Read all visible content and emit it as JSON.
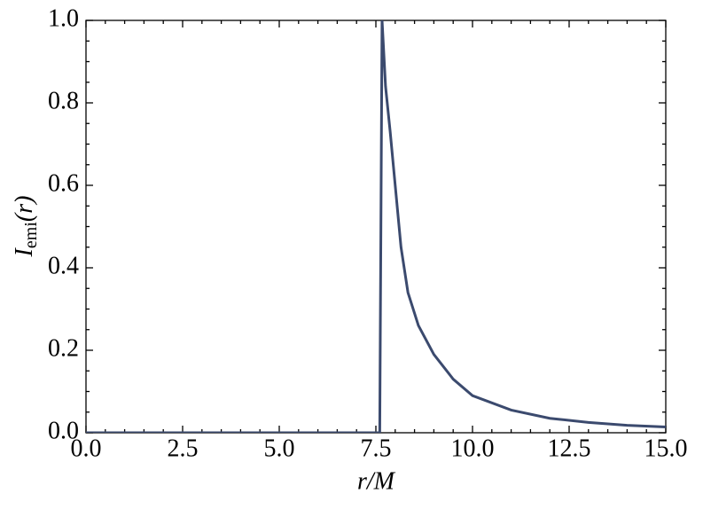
{
  "chart_data": {
    "type": "line",
    "xlabel": "r/M",
    "ylabel": {
      "symbol": "I",
      "subscript": "emi",
      "argument": "(r)"
    },
    "x": [
      0,
      7.6,
      7.66,
      7.75,
      7.87,
      8.0,
      8.15,
      8.33,
      8.6,
      9.0,
      9.5,
      10.0,
      11.0,
      12.0,
      13.0,
      14.0,
      15.0
    ],
    "series": [
      {
        "name": "I_emi",
        "color": "#3b4a6e",
        "values": [
          0,
          0,
          1.0,
          0.84,
          0.73,
          0.6,
          0.45,
          0.34,
          0.26,
          0.19,
          0.13,
          0.09,
          0.055,
          0.035,
          0.025,
          0.018,
          0.014
        ]
      }
    ],
    "xlim": [
      0,
      15
    ],
    "ylim": [
      0,
      1
    ],
    "xticks": [
      {
        "value": 0,
        "label": "0.0"
      },
      2.5,
      {
        "value": 5,
        "label": "5.0"
      },
      7.5,
      {
        "value": 10,
        "label": "10.0"
      },
      12.5,
      {
        "value": 15,
        "label": "15.0"
      }
    ],
    "yticks": [
      {
        "value": 0,
        "label": "0.0"
      },
      0.2,
      0.4,
      0.6,
      0.8,
      {
        "value": 1,
        "label": "1.0"
      }
    ],
    "x_minor_divisions": 5,
    "y_minor_divisions": 4,
    "grid": false
  }
}
